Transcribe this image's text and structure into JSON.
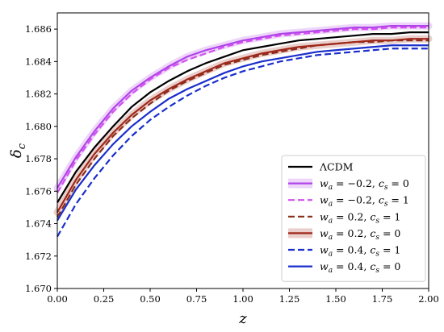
{
  "chart_data": {
    "type": "line",
    "title": "",
    "xlabel": "z",
    "ylabel": "δ_c",
    "xlim": [
      0,
      2
    ],
    "ylim": [
      1.67,
      1.687
    ],
    "x_ticks": [
      0.0,
      0.25,
      0.5,
      0.75,
      1.0,
      1.25,
      1.5,
      1.75,
      2.0
    ],
    "x_tick_labels": [
      "0.00",
      "0.25",
      "0.50",
      "0.75",
      "1.00",
      "1.25",
      "1.50",
      "1.75",
      "2.00"
    ],
    "y_ticks": [
      1.67,
      1.672,
      1.674,
      1.676,
      1.678,
      1.68,
      1.682,
      1.684,
      1.686
    ],
    "y_tick_labels": [
      "1.670",
      "1.672",
      "1.674",
      "1.676",
      "1.678",
      "1.680",
      "1.682",
      "1.684",
      "1.686"
    ],
    "grid": false,
    "legend_position": "bottom-right",
    "x": [
      0.0,
      0.1,
      0.2,
      0.3,
      0.4,
      0.5,
      0.6,
      0.7,
      0.8,
      0.9,
      1.0,
      1.1,
      1.2,
      1.3,
      1.4,
      1.5,
      1.6,
      1.7,
      1.8,
      1.9,
      2.0
    ],
    "series": [
      {
        "name": "ΛCDM",
        "color": "#000000",
        "dash": "solid",
        "band": false,
        "values": [
          1.6753,
          1.6772,
          1.6787,
          1.68,
          1.6812,
          1.6821,
          1.6828,
          1.6834,
          1.6839,
          1.6843,
          1.6847,
          1.6849,
          1.6851,
          1.6853,
          1.6854,
          1.6855,
          1.6856,
          1.6857,
          1.6857,
          1.6858,
          1.6858
        ]
      },
      {
        "name": "wa = −0.2, cs = 0",
        "label_parts": [
          "w",
          "a",
          " = −0.2, ",
          "c",
          "s",
          " = 0"
        ],
        "color": "#b044e8",
        "dash": "solid",
        "band": true,
        "values": [
          1.6762,
          1.6781,
          1.6797,
          1.6811,
          1.6822,
          1.683,
          1.6837,
          1.6843,
          1.6847,
          1.685,
          1.6853,
          1.6855,
          1.6857,
          1.6858,
          1.6859,
          1.686,
          1.6861,
          1.6861,
          1.6862,
          1.6862,
          1.6862
        ]
      },
      {
        "name": "wa = −0.2, cs = 1",
        "label_parts": [
          "w",
          "a",
          " = −0.2, ",
          "c",
          "s",
          " = 1"
        ],
        "color": "#d44ef0",
        "dash": "dashed",
        "band": false,
        "values": [
          1.6759,
          1.6779,
          1.6795,
          1.6809,
          1.682,
          1.6829,
          1.6836,
          1.6841,
          1.6845,
          1.6849,
          1.6852,
          1.6854,
          1.6856,
          1.6857,
          1.6858,
          1.6859,
          1.686,
          1.686,
          1.6861,
          1.6861,
          1.6861
        ]
      },
      {
        "name": "wa = 0.2, cs = 1",
        "label_parts": [
          "w",
          "a",
          " = 0.2, ",
          "c",
          "s",
          " = 1"
        ],
        "color": "#8b2d1a",
        "dash": "dashed",
        "band": false,
        "values": [
          1.6744,
          1.6764,
          1.678,
          1.6794,
          1.6805,
          1.6814,
          1.6822,
          1.6828,
          1.6833,
          1.6838,
          1.6841,
          1.6844,
          1.6846,
          1.6848,
          1.685,
          1.6851,
          1.6852,
          1.6852,
          1.6853,
          1.6853,
          1.6853
        ]
      },
      {
        "name": "wa = 0.2, cs = 0",
        "label_parts": [
          "w",
          "a",
          " = 0.2, ",
          "c",
          "s",
          " = 0"
        ],
        "color": "#a0281a",
        "dash": "solid",
        "band": true,
        "values": [
          1.6747,
          1.6767,
          1.6783,
          1.6796,
          1.6807,
          1.6816,
          1.6823,
          1.6829,
          1.6834,
          1.6839,
          1.6842,
          1.6845,
          1.6847,
          1.6849,
          1.685,
          1.6851,
          1.6852,
          1.6853,
          1.6853,
          1.6854,
          1.6854
        ]
      },
      {
        "name": "wa = 0.4, cs = 1",
        "label_parts": [
          "w",
          "a",
          " = 0.4, ",
          "c",
          "s",
          " = 1"
        ],
        "color": "#1a2ecc",
        "dash": "dashed",
        "band": false,
        "values": [
          1.6732,
          1.6752,
          1.6768,
          1.6782,
          1.6794,
          1.6804,
          1.6812,
          1.6819,
          1.6825,
          1.683,
          1.6834,
          1.6837,
          1.684,
          1.6842,
          1.6844,
          1.6845,
          1.6846,
          1.6847,
          1.6848,
          1.6848,
          1.6848
        ]
      },
      {
        "name": "wa = 0.4, cs = 0",
        "label_parts": [
          "w",
          "a",
          " = 0.4, ",
          "c",
          "s",
          " = 0"
        ],
        "color": "#1a2ecc",
        "dash": "solid",
        "band": false,
        "values": [
          1.6742,
          1.6761,
          1.6776,
          1.6789,
          1.68,
          1.6809,
          1.6817,
          1.6823,
          1.6828,
          1.6833,
          1.6837,
          1.684,
          1.6842,
          1.6844,
          1.6846,
          1.6847,
          1.6848,
          1.6849,
          1.685,
          1.685,
          1.685
        ]
      }
    ]
  }
}
